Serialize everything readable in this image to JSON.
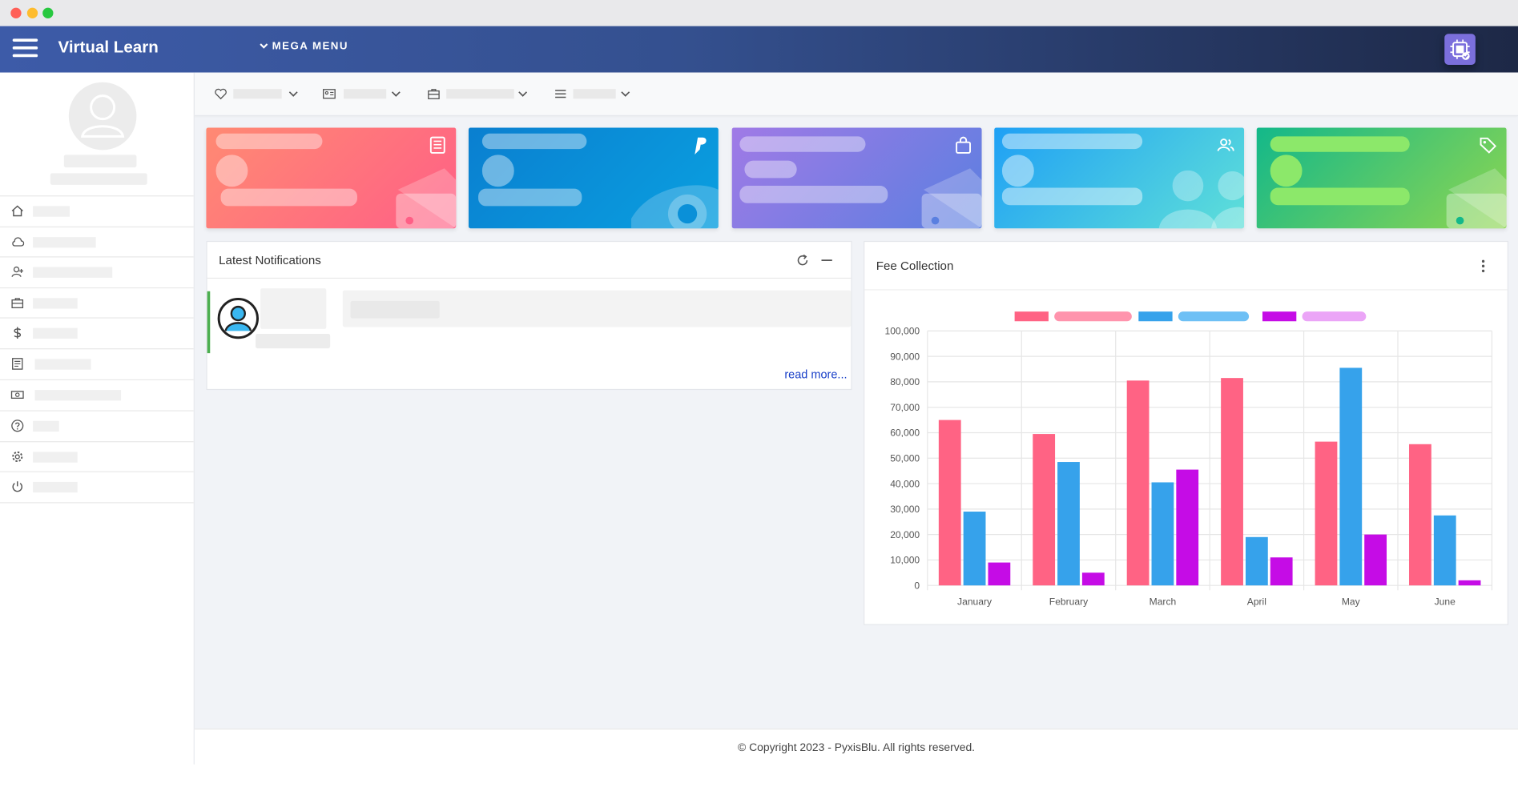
{
  "window": {
    "buttons": [
      "close",
      "minimize",
      "maximize"
    ],
    "colors": {
      "close": "#ff5f57",
      "minimize": "#febc2e",
      "maximize": "#28c840"
    }
  },
  "header": {
    "brand": "Virtual Learn",
    "mega_menu_label": "MEGA MENU",
    "menu_icon": "hamburger-icon",
    "app_icon": "app-badge-icon"
  },
  "sidebar": {
    "items": [
      {
        "icon": "home-icon"
      },
      {
        "icon": "cloud-icon"
      },
      {
        "icon": "user-plus-icon"
      },
      {
        "icon": "briefcase-icon"
      },
      {
        "icon": "dollar-icon"
      },
      {
        "icon": "book-icon"
      },
      {
        "icon": "money-icon"
      },
      {
        "icon": "help-icon"
      },
      {
        "icon": "gear-icon"
      },
      {
        "icon": "power-icon"
      }
    ]
  },
  "top_menu": {
    "items": [
      {
        "icon": "heart-icon"
      },
      {
        "icon": "id-card-icon"
      },
      {
        "icon": "briefcase-icon"
      },
      {
        "icon": "list-icon"
      }
    ]
  },
  "stat_cards": [
    {
      "icon": "document-icon",
      "gradient": [
        "#ff8a73",
        "#ff5f86"
      ]
    },
    {
      "icon": "paypal-icon",
      "gradient": [
        "#0a7fd0",
        "#0aa0e0"
      ]
    },
    {
      "icon": "shopping-bag-icon",
      "gradient": [
        "#a07ae6",
        "#5a7fe0"
      ]
    },
    {
      "icon": "users-icon",
      "gradient": [
        "#1fa0f5",
        "#5fe0d8"
      ]
    },
    {
      "icon": "tag-icon",
      "gradient": [
        "#13b88a",
        "#8fd650"
      ]
    }
  ],
  "notifications": {
    "title": "Latest Notifications",
    "refresh_icon": "refresh-icon",
    "minimize_icon": "minus-icon",
    "read_more": "read more..."
  },
  "fee_collection": {
    "title": "Fee Collection",
    "more_icon": "more-vertical-icon"
  },
  "chart_data": {
    "type": "bar",
    "categories": [
      "January",
      "February",
      "March",
      "April",
      "May",
      "June"
    ],
    "series": [
      {
        "color": "#ff6384",
        "values": [
          65000,
          59500,
          80500,
          81500,
          56500,
          55500
        ]
      },
      {
        "color": "#36a2eb",
        "values": [
          29000,
          48500,
          40500,
          19000,
          85500,
          27500
        ]
      },
      {
        "color": "#c50ce6",
        "values": [
          9000,
          5000,
          45500,
          11000,
          20000,
          2000
        ]
      }
    ],
    "ylim": [
      0,
      100000
    ],
    "yticks": [
      "100,000",
      "90,000",
      "80,000",
      "70,000",
      "60,000",
      "50,000",
      "40,000",
      "30,000",
      "20,000",
      "10,000",
      "0"
    ],
    "grid": true,
    "legend": "top"
  },
  "footer": {
    "copyright": "© Copyright 2023 - PyxisBlu. All rights reserved."
  }
}
